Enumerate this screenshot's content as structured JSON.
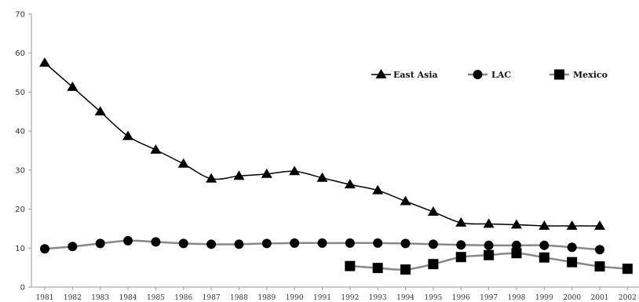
{
  "chart_data": {
    "type": "line",
    "title": "",
    "xlabel": "",
    "ylabel": "",
    "categories": [
      "1981",
      "1982",
      "1983",
      "1984",
      "1985",
      "1986",
      "1987",
      "1988",
      "1989",
      "1990",
      "1991",
      "1992",
      "1993",
      "1994",
      "1995",
      "1996",
      "1997",
      "1998",
      "1999",
      "2000",
      "2001",
      "2002"
    ],
    "ylim": [
      0,
      70
    ],
    "yticks": [
      "0",
      "10",
      "20",
      "30",
      "40",
      "50",
      "60",
      "70"
    ],
    "grid": false,
    "legend_position": "top-right",
    "series": [
      {
        "name": "East Asia",
        "marker": "triangle",
        "color": "#000000",
        "line_color": "#000000",
        "values": [
          57.5,
          51.3,
          45.0,
          38.7,
          35.2,
          31.6,
          27.8,
          28.5,
          29.0,
          29.7,
          28.0,
          26.3,
          24.8,
          22.0,
          19.3,
          16.5,
          16.2,
          16.0,
          15.7,
          15.7,
          15.7,
          null
        ]
      },
      {
        "name": "LAC",
        "marker": "circle",
        "color": "#000000",
        "line_color": "#888888",
        "values": [
          9.8,
          10.4,
          11.2,
          11.9,
          11.6,
          11.2,
          11.0,
          11.0,
          11.2,
          11.3,
          11.3,
          11.3,
          11.3,
          11.2,
          11.0,
          10.8,
          10.7,
          10.7,
          10.7,
          10.2,
          9.6,
          null
        ]
      },
      {
        "name": "Mexico",
        "marker": "square",
        "color": "#000000",
        "line_color": "#888888",
        "values": [
          null,
          null,
          null,
          null,
          null,
          null,
          null,
          null,
          null,
          null,
          null,
          5.4,
          4.9,
          4.5,
          5.9,
          7.7,
          8.2,
          8.7,
          7.6,
          6.4,
          5.3,
          4.7
        ]
      }
    ]
  }
}
